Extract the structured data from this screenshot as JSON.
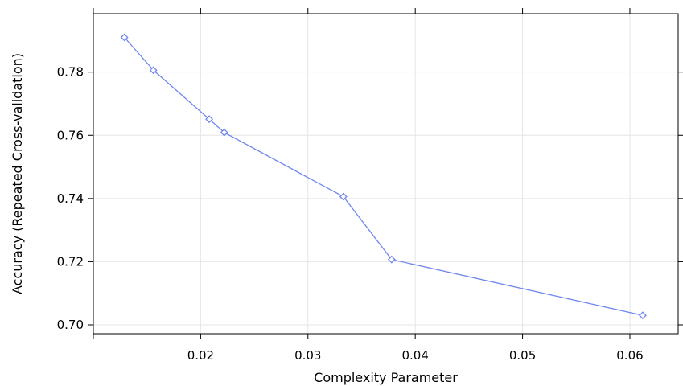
{
  "chart_data": {
    "type": "line",
    "title": "",
    "xlabel": "Complexity Parameter",
    "ylabel": "Accuracy (Repeated Cross-validation)",
    "xlim": [
      0.01,
      0.0645
    ],
    "ylim": [
      0.6972,
      0.7985
    ],
    "xticks": [
      0.02,
      0.03,
      0.04,
      0.05,
      0.06
    ],
    "xtick_labels": [
      "0.02",
      "0.03",
      "0.04",
      "0.05",
      "0.06"
    ],
    "top_ticks": [
      0.01,
      0.02,
      0.03,
      0.04,
      0.05,
      0.06
    ],
    "yticks": [
      0.7,
      0.72,
      0.74,
      0.76,
      0.78
    ],
    "ytick_labels": [
      "0.70",
      "0.72",
      "0.74",
      "0.76",
      "0.78"
    ],
    "grid": true,
    "series": [
      {
        "color": "#6f86ef",
        "marker": "diamond",
        "x": [
          0.0129,
          0.0156,
          0.0208,
          0.0222,
          0.0333,
          0.0378,
          0.0612
        ],
        "y": [
          0.791,
          0.7806,
          0.7651,
          0.7609,
          0.7406,
          0.7207,
          0.703
        ]
      }
    ]
  }
}
